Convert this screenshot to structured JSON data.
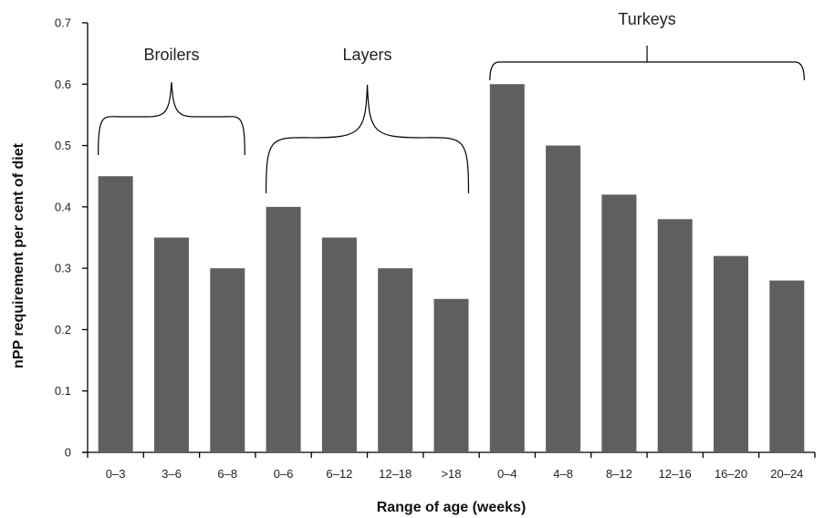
{
  "chart_data": {
    "type": "bar",
    "xlabel": "Range of age (weeks)",
    "ylabel": "nPP requirement per cent of diet",
    "ylim": [
      0,
      0.7
    ],
    "yticks": [
      "0",
      "0.1",
      "0.2",
      "0.3",
      "0.4",
      "0.5",
      "0.6",
      "0.7"
    ],
    "grid": false,
    "bar_color": "#5f5f5f",
    "categories": [
      "0–3",
      "3–6",
      "6–8",
      "0–6",
      "6–12",
      "12–18",
      ">18",
      "0–4",
      "4–8",
      "8–12",
      "12–16",
      "16–20",
      "20–24"
    ],
    "values": [
      0.45,
      0.35,
      0.3,
      0.4,
      0.35,
      0.3,
      0.25,
      0.6,
      0.5,
      0.42,
      0.38,
      0.32,
      0.28
    ],
    "groups": [
      {
        "label": "Broilers",
        "start": 0,
        "end": 2
      },
      {
        "label": "Layers",
        "start": 3,
        "end": 6
      },
      {
        "label": "Turkeys",
        "start": 7,
        "end": 12
      }
    ]
  }
}
